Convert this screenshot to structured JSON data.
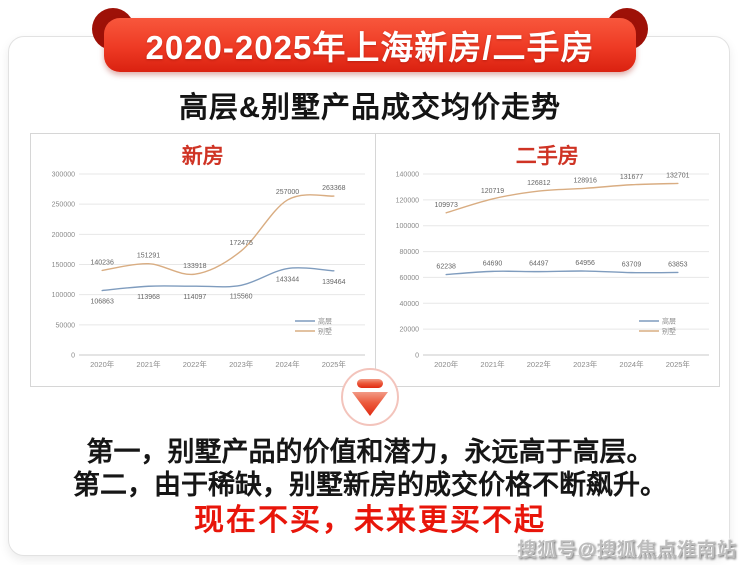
{
  "banner": {
    "title": "2020-2025年上海新房/二手房"
  },
  "page_title": "高层&别墅产品成交均价走势",
  "colors": {
    "banner_red": "#ee3a24",
    "banner_fold_dark_red": "#9e1108",
    "chart_title_red": "#cf3324",
    "highlight_red": "#e8150a",
    "highrise_line_blue": "#7f9cbe",
    "villa_line_orange": "#d9ad82"
  },
  "chart_data": [
    {
      "type": "line",
      "title": "新房",
      "categories": [
        "2020年",
        "2021年",
        "2022年",
        "2023年",
        "2024年",
        "2025年"
      ],
      "ylim": [
        0,
        300000
      ],
      "ytick_step": 50000,
      "grid": true,
      "legend_position": "bottom-right",
      "series": [
        {
          "name": "高层",
          "color": "#7f9cbe",
          "label_side": "below",
          "values": [
            106863,
            113968,
            114097,
            115560,
            143344,
            139464
          ]
        },
        {
          "name": "别墅",
          "color": "#d9ad82",
          "label_side": "above",
          "values": [
            140236,
            151291,
            133918,
            172475,
            257000,
            263368
          ]
        }
      ]
    },
    {
      "type": "line",
      "title": "二手房",
      "categories": [
        "2020年",
        "2021年",
        "2022年",
        "2023年",
        "2024年",
        "2025年"
      ],
      "ylim": [
        0,
        140000
      ],
      "ytick_step": 20000,
      "grid": true,
      "legend_position": "bottom-right",
      "series": [
        {
          "name": "高层",
          "color": "#7f9cbe",
          "label_side": "above",
          "values": [
            62238,
            64690,
            64497,
            64956,
            63709,
            63853
          ]
        },
        {
          "name": "别墅",
          "color": "#d9ad82",
          "label_side": "above",
          "values": [
            109973,
            120719,
            126812,
            128916,
            131677,
            132701
          ]
        }
      ]
    }
  ],
  "conclusion": {
    "line1": "第一，别墅产品的价值和潜力，永远高于高层。",
    "line2": "第二，由于稀缺，别墅新房的成交价格不断飙升。",
    "highlight": "现在不买，未来更买不起"
  },
  "watermark": "搜狐号@搜狐焦点淮南站"
}
